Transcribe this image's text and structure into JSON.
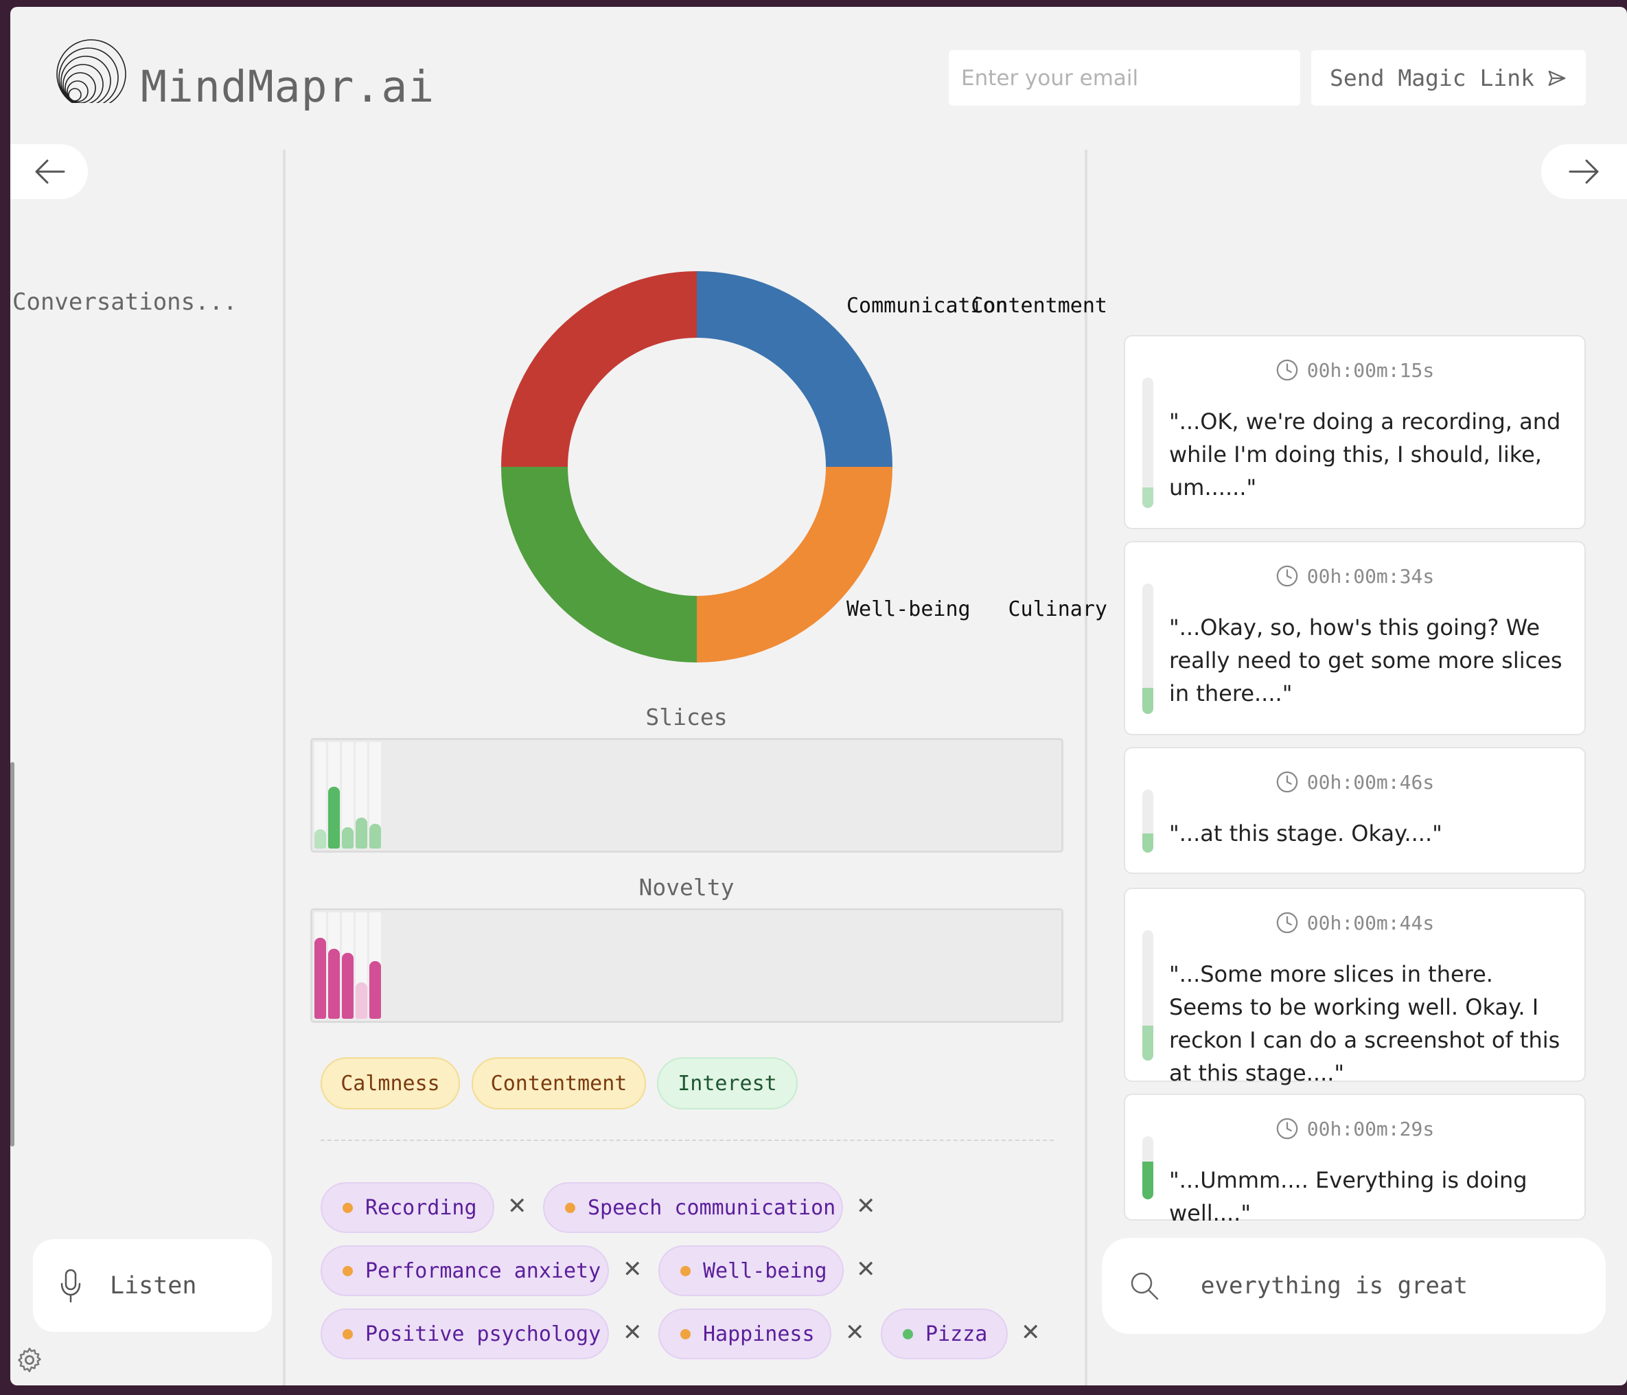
{
  "header": {
    "brand": "MindMapr.ai",
    "email_placeholder": "Enter your email",
    "magic_link_label": "Send Magic Link"
  },
  "left": {
    "conversations_label": "Conversations...",
    "listen_label": "Listen"
  },
  "chart_data": {
    "type": "pie",
    "categories": [
      "Communication",
      "Well-being",
      "Culinary",
      "Contentment"
    ],
    "values": [
      25,
      25,
      25,
      25
    ],
    "colors": [
      "#3b73ae",
      "#ef8a35",
      "#519e3e",
      "#c33a33"
    ]
  },
  "meters": {
    "slices": {
      "title": "Slices",
      "values": [
        0.18,
        0.58,
        0.2,
        0.29,
        0.23
      ],
      "colors": [
        "#b9e2c0",
        "#57b966",
        "#9ed6a6",
        "#9ed6a6",
        "#9ed6a6"
      ]
    },
    "novelty": {
      "title": "Novelty",
      "values": [
        0.76,
        0.66,
        0.62,
        0.34,
        0.54
      ],
      "colors": [
        "#d24f96",
        "#d24f96",
        "#d24f96",
        "#f1c6dc",
        "#d24f96"
      ]
    }
  },
  "emotions": [
    {
      "label": "Calmness",
      "bg": "#fbefc3",
      "border": "#f3dc92",
      "color": "#7c3a10"
    },
    {
      "label": "Contentment",
      "bg": "#fbefc3",
      "border": "#f3dc92",
      "color": "#7c3a10"
    },
    {
      "label": "Interest",
      "bg": "#e1f6e5",
      "border": "#c7ecd0",
      "color": "#1e5631"
    }
  ],
  "topics": [
    {
      "label": "Recording",
      "dot": "#f0a33e"
    },
    {
      "label": "Speech communication",
      "dot": "#f0a33e"
    },
    {
      "label": "Performance anxiety",
      "dot": "#f0a33e"
    },
    {
      "label": "Well-being",
      "dot": "#f0a33e"
    },
    {
      "label": "Positive psychology",
      "dot": "#f0a33e"
    },
    {
      "label": "Happiness",
      "dot": "#f0a33e"
    },
    {
      "label": "Pizza",
      "dot": "#5cbf6b"
    }
  ],
  "transcripts": [
    {
      "time": "00h:00m:15s",
      "text": "\"...OK, we're doing a recording, and while I'm doing this, I should, like, um......\"",
      "level": 0.16,
      "color": "#b5e0bc"
    },
    {
      "time": "00h:00m:34s",
      "text": "\"...Okay, so, how's this going? We really need to get some more slices in there....\"",
      "level": 0.2,
      "color": "#9ed6a6"
    },
    {
      "time": "00h:00m:46s",
      "text": "\"...at this stage. Okay....\"",
      "level": 0.3,
      "color": "#9ed6a6"
    },
    {
      "time": "00h:00m:44s",
      "text": "\"...Some more slices in there. Seems to be working well. Okay. I reckon I can do a screenshot of this at this stage....\"",
      "level": 0.27,
      "color": "#a6d9ad"
    },
    {
      "time": "00h:00m:29s",
      "text": "\"...Ummm.... Everything is doing well....\"",
      "level": 0.6,
      "color": "#57b966"
    }
  ],
  "search": {
    "value": "everything is great"
  }
}
